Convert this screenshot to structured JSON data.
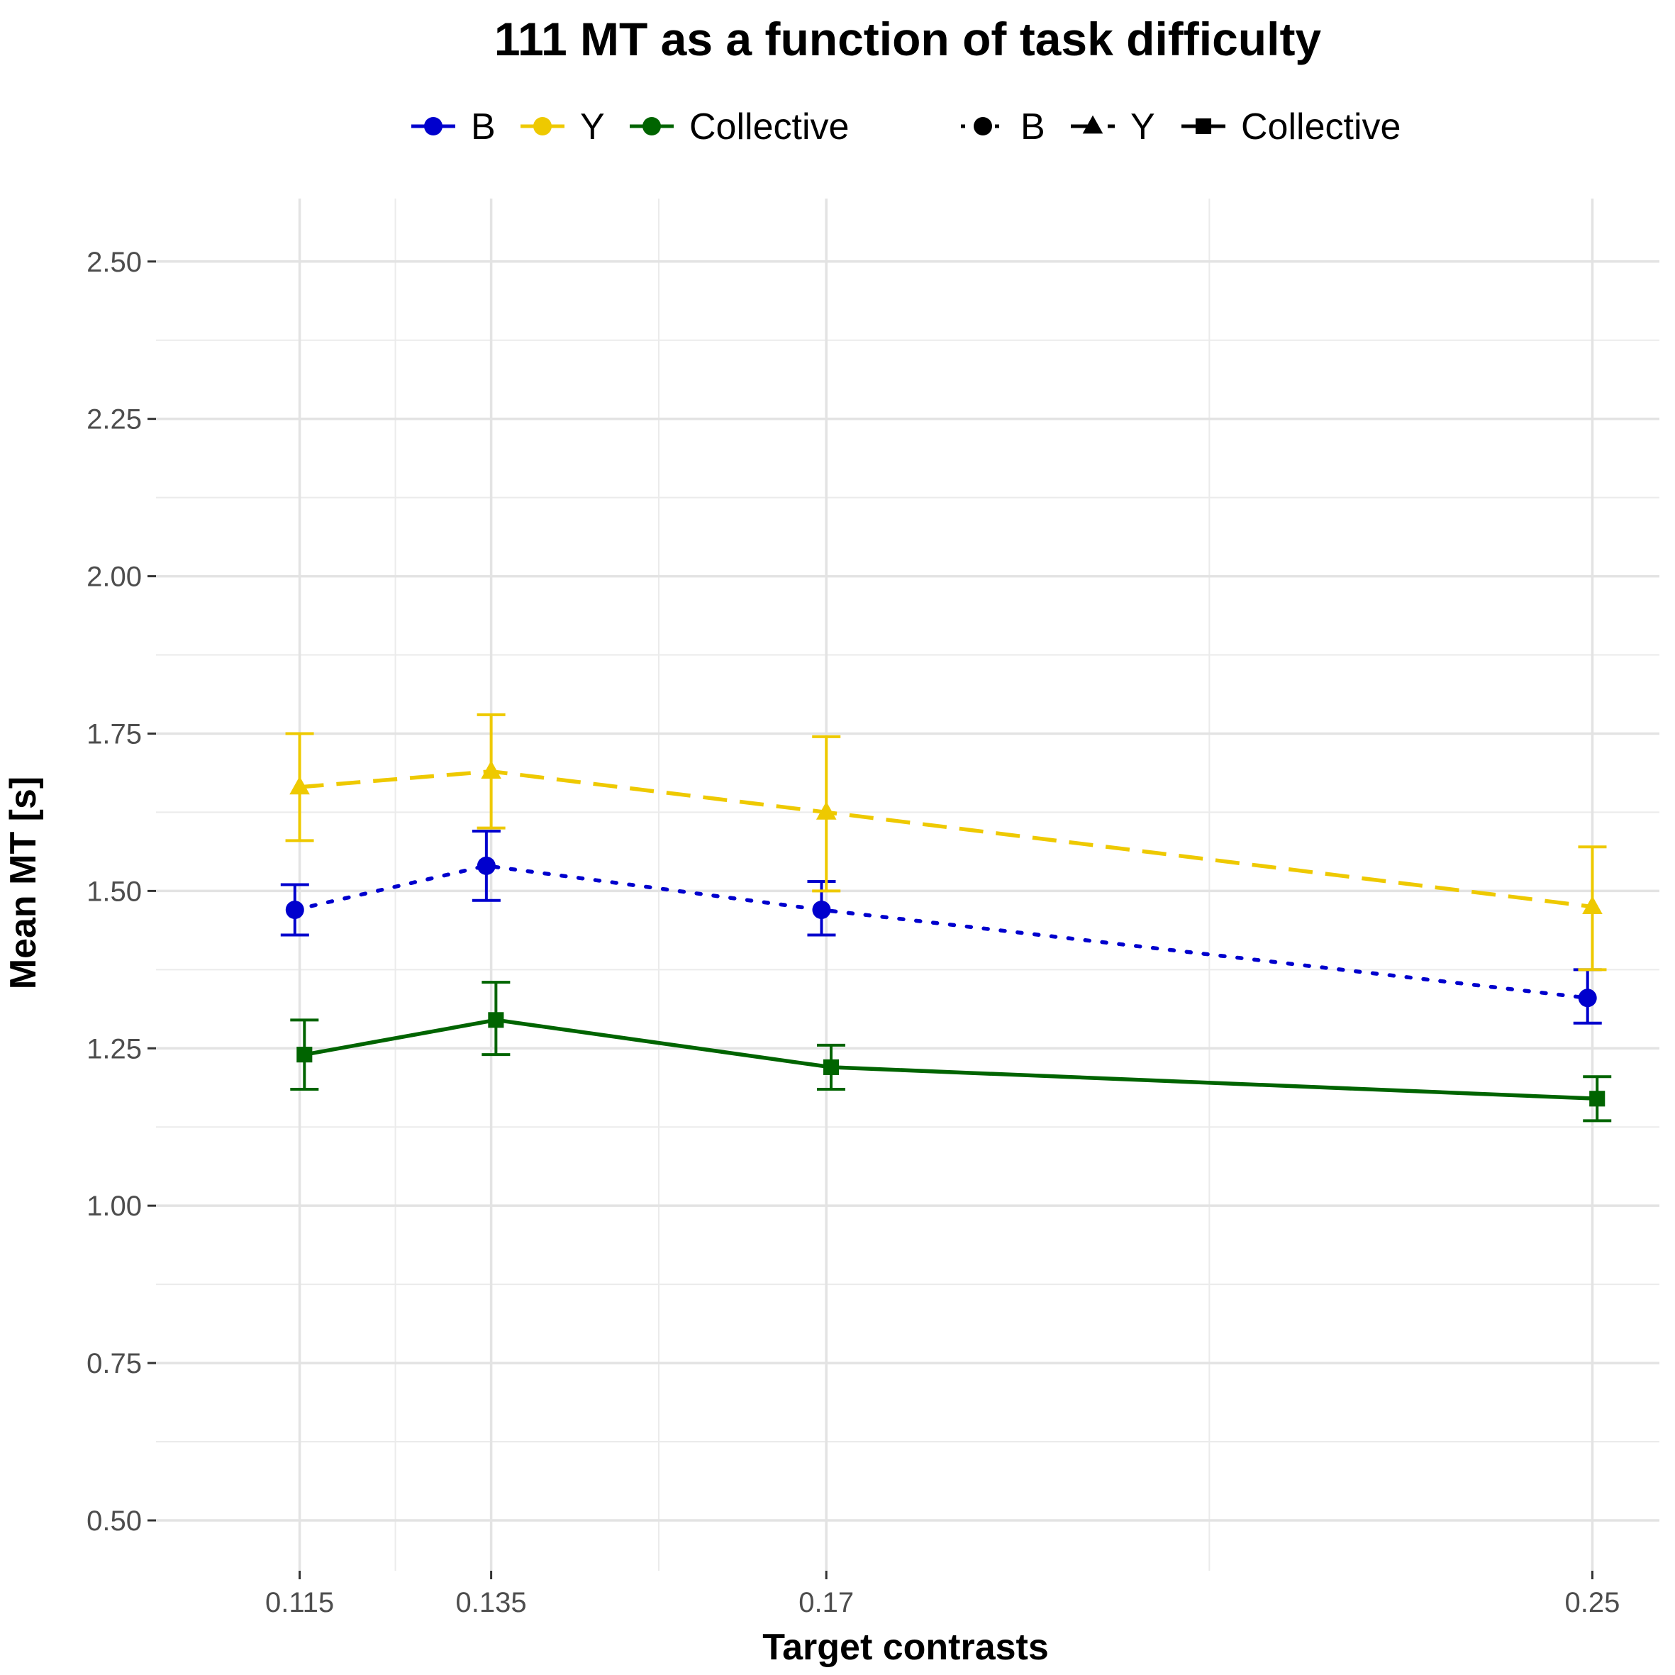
{
  "chart_data": {
    "type": "line",
    "title": "111   MT  as a function of task difficulty",
    "xlabel": "Target contrasts",
    "ylabel": "Mean  MT  [s]",
    "x": [
      0.115,
      0.135,
      0.17,
      0.25
    ],
    "x_tick_labels": [
      "0.115",
      "0.135",
      "0.17",
      "0.25"
    ],
    "xlim": [
      0.1,
      0.257
    ],
    "ylim": [
      0.42,
      2.6
    ],
    "y_ticks": [
      0.5,
      0.75,
      1.0,
      1.25,
      1.5,
      1.75,
      2.0,
      2.25,
      2.5
    ],
    "y_tick_labels": [
      "0.50",
      "0.75",
      "1.00",
      "1.25",
      "1.50",
      "1.75",
      "2.00",
      "2.25",
      "2.50"
    ],
    "grid": true,
    "legend_placement": "top",
    "legend": {
      "color_entries": [
        "B",
        "Y",
        "Collective"
      ],
      "shape_entries": [
        "B",
        "Y",
        "Collective"
      ]
    },
    "series": [
      {
        "name": "B",
        "color": "#0000cd",
        "linestyle": "dotted",
        "marker": "circle",
        "x_offset": -0.0005,
        "values": [
          1.47,
          1.54,
          1.47,
          1.33
        ],
        "err_low": [
          1.43,
          1.485,
          1.43,
          1.29
        ],
        "err_high": [
          1.51,
          1.595,
          1.515,
          1.375
        ]
      },
      {
        "name": "Y",
        "color": "#eec900",
        "linestyle": "dashed",
        "marker": "triangle",
        "x_offset": 0.0,
        "values": [
          1.665,
          1.69,
          1.625,
          1.475
        ],
        "err_low": [
          1.58,
          1.6,
          1.5,
          1.375
        ],
        "err_high": [
          1.75,
          1.78,
          1.745,
          1.57
        ]
      },
      {
        "name": "Collective",
        "color": "#006400",
        "linestyle": "solid",
        "marker": "square",
        "x_offset": 0.0005,
        "values": [
          1.24,
          1.295,
          1.22,
          1.17
        ],
        "err_low": [
          1.185,
          1.24,
          1.185,
          1.135
        ],
        "err_high": [
          1.295,
          1.355,
          1.255,
          1.205
        ]
      }
    ]
  }
}
